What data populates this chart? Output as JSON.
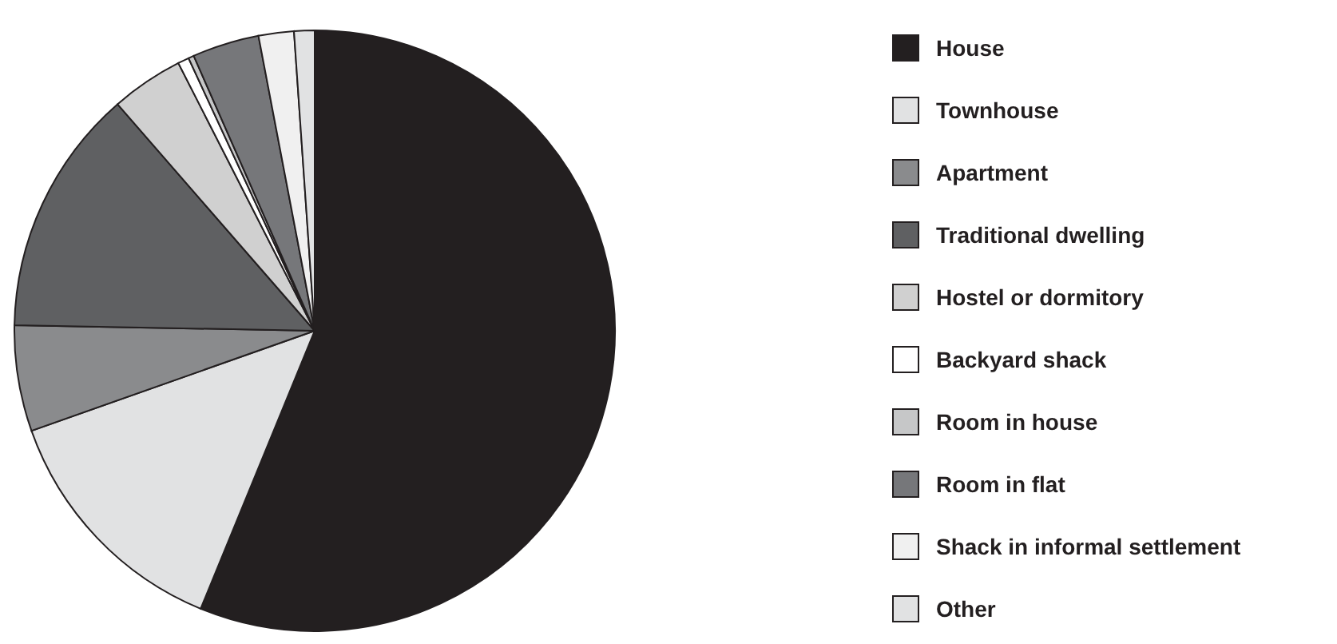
{
  "chart_data": {
    "type": "pie",
    "categories": [
      "House",
      "Townhouse",
      "Apartment",
      "Traditional dwelling",
      "Hostel or dormitory",
      "Backyard shack",
      "Room in house",
      "Room in flat",
      "Shack in informal settlement",
      "Other"
    ],
    "values": [
      56.2,
      13.4,
      5.7,
      13.3,
      3.9,
      0.6,
      0.3,
      3.6,
      1.9,
      1.1
    ],
    "colors": [
      "#231f20",
      "#e1e2e3",
      "#8a8b8d",
      "#5f6062",
      "#d0d0d0",
      "#ffffff",
      "#c6c7c8",
      "#76777a",
      "#f0f0f0",
      "#e1e2e3"
    ],
    "legend": "right"
  }
}
